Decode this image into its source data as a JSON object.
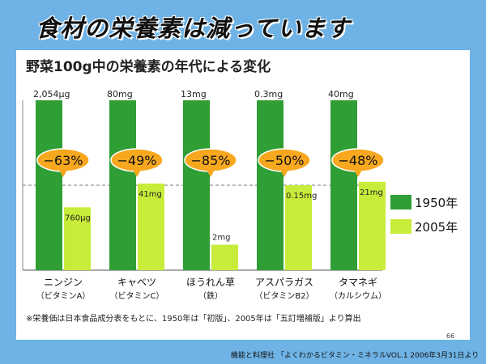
{
  "slide_title": "食材の栄養素は減っています",
  "colors": {
    "series_1950": "#2f9e35",
    "series_2005": "#c8ec3a",
    "badge": "#f7a81e",
    "background": "#6fb3e6"
  },
  "chart_data": {
    "type": "bar",
    "title": "野菜100g中の栄養素の年代による変化",
    "categories": [
      {
        "name": "ニンジン",
        "sub": "（ビタミンA）"
      },
      {
        "name": "キャベツ",
        "sub": "（ビタミンC）"
      },
      {
        "name": "ほうれん草",
        "sub": "（鉄）"
      },
      {
        "name": "アスパラガス",
        "sub": "（ビタミンB2）"
      },
      {
        "name": "タマネギ",
        "sub": "（カルシウム）"
      }
    ],
    "series": [
      {
        "name": "1950年",
        "values": [
          2054,
          80,
          13,
          0.3,
          40
        ],
        "labels": [
          "2,054μg",
          "80mg",
          "13mg",
          "0.3mg",
          "40mg"
        ]
      },
      {
        "name": "2005年",
        "values": [
          760,
          41,
          2,
          0.15,
          21
        ],
        "labels": [
          "760μg",
          "41mg",
          "2mg",
          "0.15mg",
          "21mg"
        ]
      }
    ],
    "relative_2005": [
      0.37,
      0.51,
      0.15,
      0.5,
      0.52
    ],
    "changes": [
      "−63%",
      "−49%",
      "−85%",
      "−50%",
      "−48%"
    ],
    "legend_position": "right",
    "footnote": "※栄養価は日本食品成分表をもとに、1950年は「初版」、2005年は「五訂増補版」より算出",
    "page_number": "66"
  },
  "source": "機能と料理社 「よくわかるビタミン・ミネラルVOL.1 2006年3月31日より"
}
